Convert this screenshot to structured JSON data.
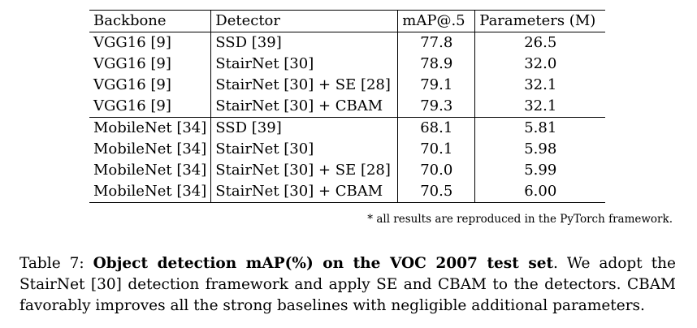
{
  "table": {
    "headers": [
      "Backbone",
      "Detector",
      "mAP@.5",
      "Parameters (M)"
    ],
    "groups": [
      {
        "rows": [
          {
            "backbone": "VGG16 [9]",
            "detector": "SSD [39]",
            "map": "77.8",
            "params": "26.5",
            "best": false
          },
          {
            "backbone": "VGG16 [9]",
            "detector": "StairNet [30]",
            "map": "78.9",
            "params": "32.0",
            "best": false
          },
          {
            "backbone": "VGG16 [9]",
            "detector": "StairNet [30] + SE [28]",
            "map": "79.1",
            "params": "32.1",
            "best": false
          },
          {
            "backbone": "VGG16 [9]",
            "detector": "StairNet [30] + CBAM",
            "map": "79.3",
            "params": "32.1",
            "best": true
          }
        ]
      },
      {
        "rows": [
          {
            "backbone": "MobileNet [34]",
            "detector": "SSD [39]",
            "map": "68.1",
            "params": "5.81",
            "best": false
          },
          {
            "backbone": "MobileNet [34]",
            "detector": "StairNet [30]",
            "map": "70.1",
            "params": "5.98",
            "best": false
          },
          {
            "backbone": "MobileNet [34]",
            "detector": "StairNet [30] + SE [28]",
            "map": "70.0",
            "params": "5.99",
            "best": false
          },
          {
            "backbone": "MobileNet [34]",
            "detector": "StairNet [30] + CBAM",
            "map": "70.5",
            "params": "6.00",
            "best": true
          }
        ]
      }
    ]
  },
  "footnote": "* all results are reproduced in the PyTorch framework.",
  "caption": {
    "label": "Table 7: ",
    "bold": "Object detection mAP(%) on the VOC 2007 test set",
    "rest": ". We adopt the StairNet [30] detection framework and apply SE and CBAM to the detectors. CBAM favorably improves all the strong baselines with negligible additional parameters."
  }
}
